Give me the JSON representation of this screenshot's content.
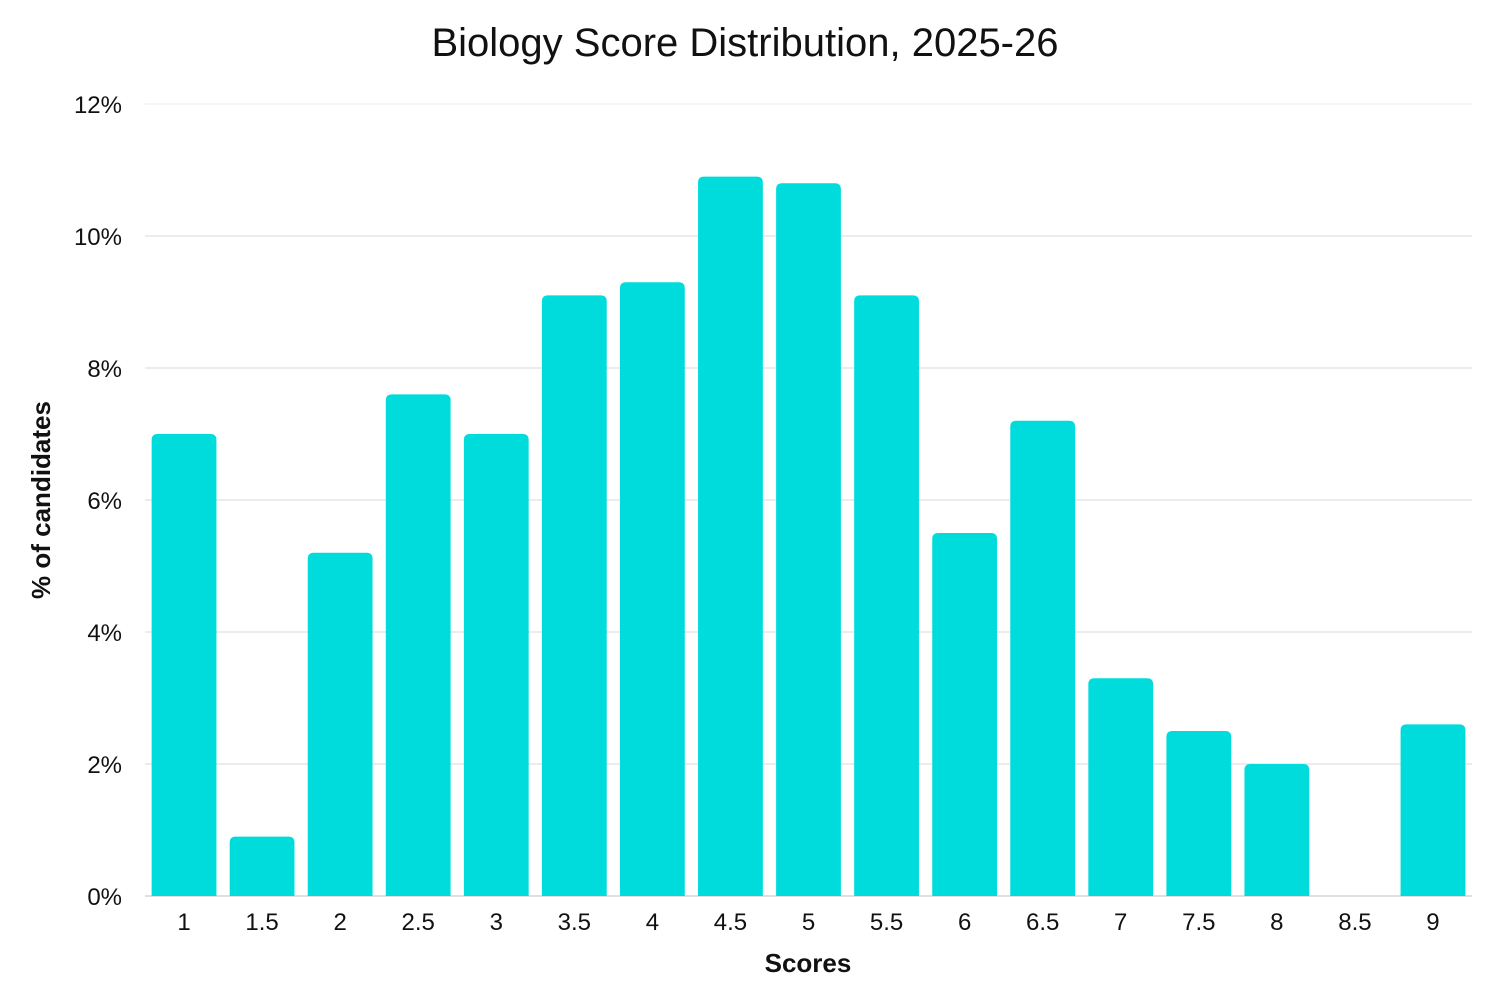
{
  "chart_data": {
    "type": "bar",
    "title": "Biology Score Distribution, 2025-26",
    "xlabel": "Scores",
    "ylabel": "% of candidates",
    "categories": [
      "1",
      "1.5",
      "2",
      "2.5",
      "3",
      "3.5",
      "4",
      "4.5",
      "5",
      "5.5",
      "6",
      "6.5",
      "7",
      "7.5",
      "8",
      "8.5",
      "9"
    ],
    "values": [
      7.0,
      0.9,
      5.2,
      7.6,
      7.0,
      9.1,
      9.3,
      10.9,
      10.8,
      9.1,
      5.5,
      7.2,
      3.3,
      2.5,
      2.0,
      0,
      2.6
    ],
    "ylim": [
      0,
      12
    ],
    "yticks": [
      0,
      2,
      4,
      6,
      8,
      10,
      12
    ],
    "ytick_labels": [
      "0%",
      "2%",
      "4%",
      "6%",
      "8%",
      "10%",
      "12%"
    ],
    "grid": true,
    "legend": "none",
    "bar_color": "#00DCDC"
  }
}
